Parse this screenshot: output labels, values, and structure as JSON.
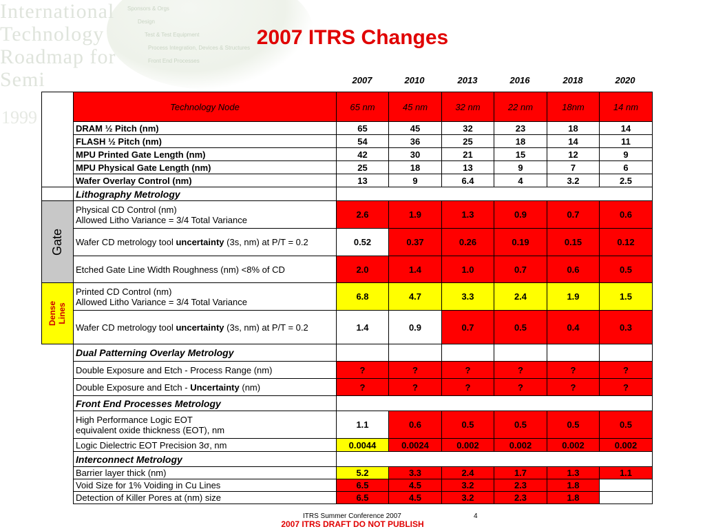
{
  "background": {
    "logo_lines": [
      "International",
      "Technology",
      "Roadmap for",
      "Semi"
    ],
    "logo_year": "1999",
    "faint_links": [
      "Sponsors & Orgs",
      "Design",
      "Test & Test Equipment",
      "Process Integration, Devices & Structures",
      "Front End Processes"
    ]
  },
  "title": "2007 ITRS Changes",
  "years": [
    "2007",
    "2010",
    "2013",
    "2016",
    "2018",
    "2020"
  ],
  "tech_node": {
    "label": "Technology Node",
    "values": [
      "65 nm",
      "45 nm",
      "32 nm",
      "22 nm",
      "18nm",
      "14 nm"
    ]
  },
  "node_rows": [
    {
      "label": "DRAM ½ Pitch (nm)",
      "values": [
        "65",
        "45",
        "32",
        "23",
        "18",
        "14"
      ]
    },
    {
      "label": "FLASH ½ Pitch (nm)",
      "values": [
        "54",
        "36",
        "25",
        "18",
        "14",
        "11"
      ]
    },
    {
      "label": "MPU Printed Gate Length (nm)",
      "values": [
        "42",
        "30",
        "21",
        "15",
        "12",
        "9"
      ]
    },
    {
      "label": "MPU Physical Gate Length  (nm)",
      "values": [
        "25",
        "18",
        "13",
        "9",
        "7",
        "6"
      ]
    },
    {
      "label": "Wafer Overlay Control (nm)",
      "values": [
        "13",
        "9",
        "6.4",
        "4",
        "3.2",
        "2.5"
      ]
    }
  ],
  "litho": {
    "heading": "Lithography Metrology",
    "gate_label": "Gate",
    "dense_label_1": "Dense",
    "dense_label_2": "Lines",
    "rows": [
      {
        "line1": "Physical CD Control (nm)",
        "line2": "Allowed Litho Variance = 3/4 Total Variance",
        "values": [
          "2.6",
          "1.9",
          "1.3",
          "0.9",
          "0.7",
          "0.6"
        ]
      },
      {
        "pre": "Wafer CD metrology tool ",
        "bold": "uncertainty",
        "post": " (3s, nm) at P/T = 0.2",
        "values": [
          "0.52",
          "0.37",
          "0.26",
          "0.19",
          "0.15",
          "0.12"
        ]
      },
      {
        "text": "Etched Gate Line Width Roughness (nm) <8% of CD",
        "values": [
          "2.0",
          "1.4",
          "1.0",
          "0.7",
          "0.6",
          "0.5"
        ]
      },
      {
        "line1": "Printed CD Control (nm)",
        "line2": "Allowed Litho Variance = 3/4 Total Variance",
        "values": [
          "6.8",
          "4.7",
          "3.3",
          "2.4",
          "1.9",
          "1.5"
        ]
      },
      {
        "pre": "Wafer CD metrology tool ",
        "bold": "uncertainty",
        "post": " (3s, nm) at P/T = 0.2",
        "values": [
          "1.4",
          "0.9",
          "0.7",
          "0.5",
          "0.4",
          "0.3"
        ]
      }
    ]
  },
  "dual": {
    "heading": "Dual Patterning Overlay Metrology",
    "rows": [
      {
        "text": "Double Exposure and Etch - Process Range (nm)",
        "values": [
          "?",
          "?",
          "?",
          "?",
          "?",
          "?"
        ]
      },
      {
        "pre": "Double Exposure and Etch - ",
        "bold": "Uncertainty",
        "post": " (nm)",
        "values": [
          "?",
          "?",
          "?",
          "?",
          "?",
          "?"
        ]
      }
    ]
  },
  "fep": {
    "heading": "Front End Processes Metrology",
    "rows": [
      {
        "line1": "High Performance Logic  EOT",
        "line2": "equivalent oxide thickness (EOT), nm",
        "values": [
          "1.1",
          "0.6",
          "0.5",
          "0.5",
          "0.5",
          "0.5"
        ]
      },
      {
        "text": "Logic Dielectric EOT Precision 3σ, nm",
        "values": [
          "0.0044",
          "0.0024",
          "0.002",
          "0.002",
          "0.002",
          "0.002"
        ]
      }
    ]
  },
  "interconnect": {
    "heading": "Interconnect Metrology",
    "rows": [
      {
        "text": "Barrier layer thick (nm)",
        "values": [
          "5.2",
          "3.3",
          "2.4",
          "1.7",
          "1.3",
          "1.1"
        ]
      },
      {
        "text": "Void Size for 1% Voiding in Cu Lines",
        "values": [
          "6.5",
          "4.5",
          "3.2",
          "2.3",
          "1.8",
          ""
        ]
      },
      {
        "text": "Detection of Killer Pores at (nm) size",
        "values": [
          "6.5",
          "4.5",
          "3.2",
          "2.3",
          "1.8",
          ""
        ]
      }
    ]
  },
  "footer": {
    "conference": "ITRS Summer Conference 2007",
    "page": "4",
    "notice": "2007 ITRS DRAFT DO NOT PUBLISH"
  }
}
